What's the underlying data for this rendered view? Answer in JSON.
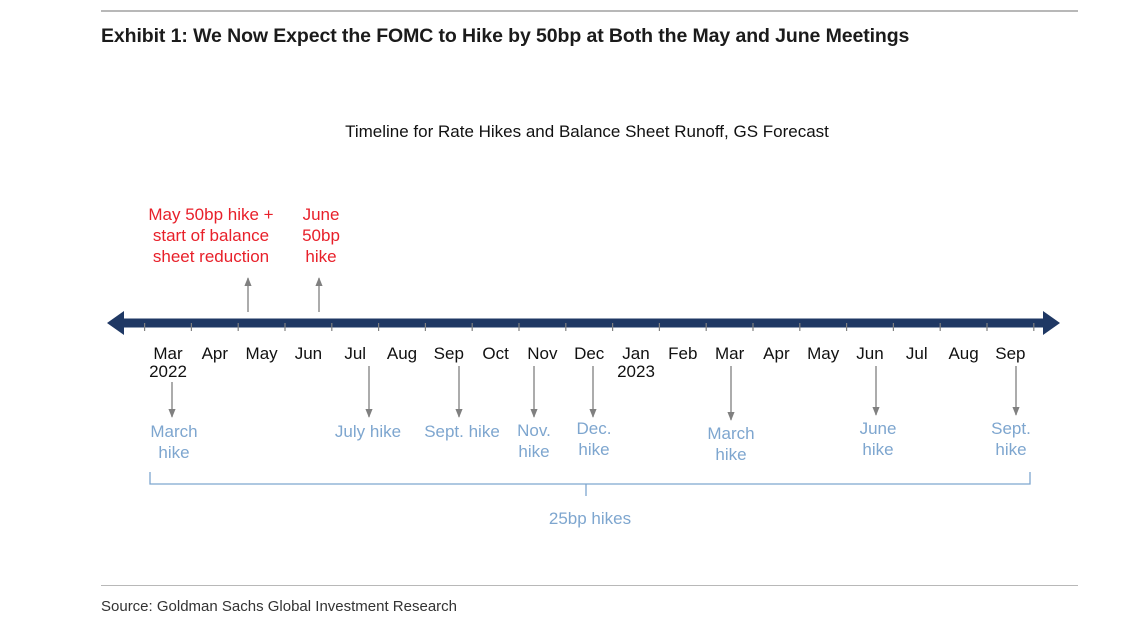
{
  "exhibit_title": "Exhibit 1: We Now Expect the FOMC to Hike by 50bp at Both the May and June Meetings",
  "source": "Source: Goldman Sachs Global Investment Research",
  "colors": {
    "axis": "#1f3864",
    "red": "#e8202a",
    "blue": "#7ea6cf",
    "arrow": "#808080",
    "text": "#111111"
  },
  "chart_data": {
    "type": "timeline",
    "title": "Timeline for Rate Hikes and Balance Sheet Runoff, GS Forecast",
    "months": [
      "Mar",
      "Apr",
      "May",
      "Jun",
      "Jul",
      "Aug",
      "Sep",
      "Oct",
      "Nov",
      "Dec",
      "Jan",
      "Feb",
      "Mar",
      "Apr",
      "May",
      "Jun",
      "Jul",
      "Aug",
      "Sep"
    ],
    "years": [
      {
        "month_index": 0,
        "label": "2022"
      },
      {
        "month_index": 10,
        "label": "2023"
      }
    ],
    "events_above": [
      {
        "month_index": 2,
        "lines": [
          "May 50bp hike +",
          "start of balance",
          "sheet reduction"
        ]
      },
      {
        "month_index": 3,
        "lines": [
          "June",
          "50bp",
          "hike"
        ]
      }
    ],
    "events_below": [
      {
        "month_index": 0,
        "lines": [
          "March",
          "hike"
        ]
      },
      {
        "month_index": 4,
        "lines": [
          "July hike"
        ]
      },
      {
        "month_index": 6,
        "lines": [
          "Sept. hike"
        ]
      },
      {
        "month_index": 8,
        "lines": [
          "Nov.",
          "hike"
        ]
      },
      {
        "month_index": 9,
        "lines": [
          "Dec.",
          "hike"
        ]
      },
      {
        "month_index": 12,
        "lines": [
          "March",
          "hike"
        ]
      },
      {
        "month_index": 15,
        "lines": [
          "June",
          "hike"
        ]
      },
      {
        "month_index": 18,
        "lines": [
          "Sept.",
          "hike"
        ]
      }
    ],
    "bracket": {
      "from_index": 0,
      "to_index": 18,
      "label": "25bp hikes"
    }
  }
}
